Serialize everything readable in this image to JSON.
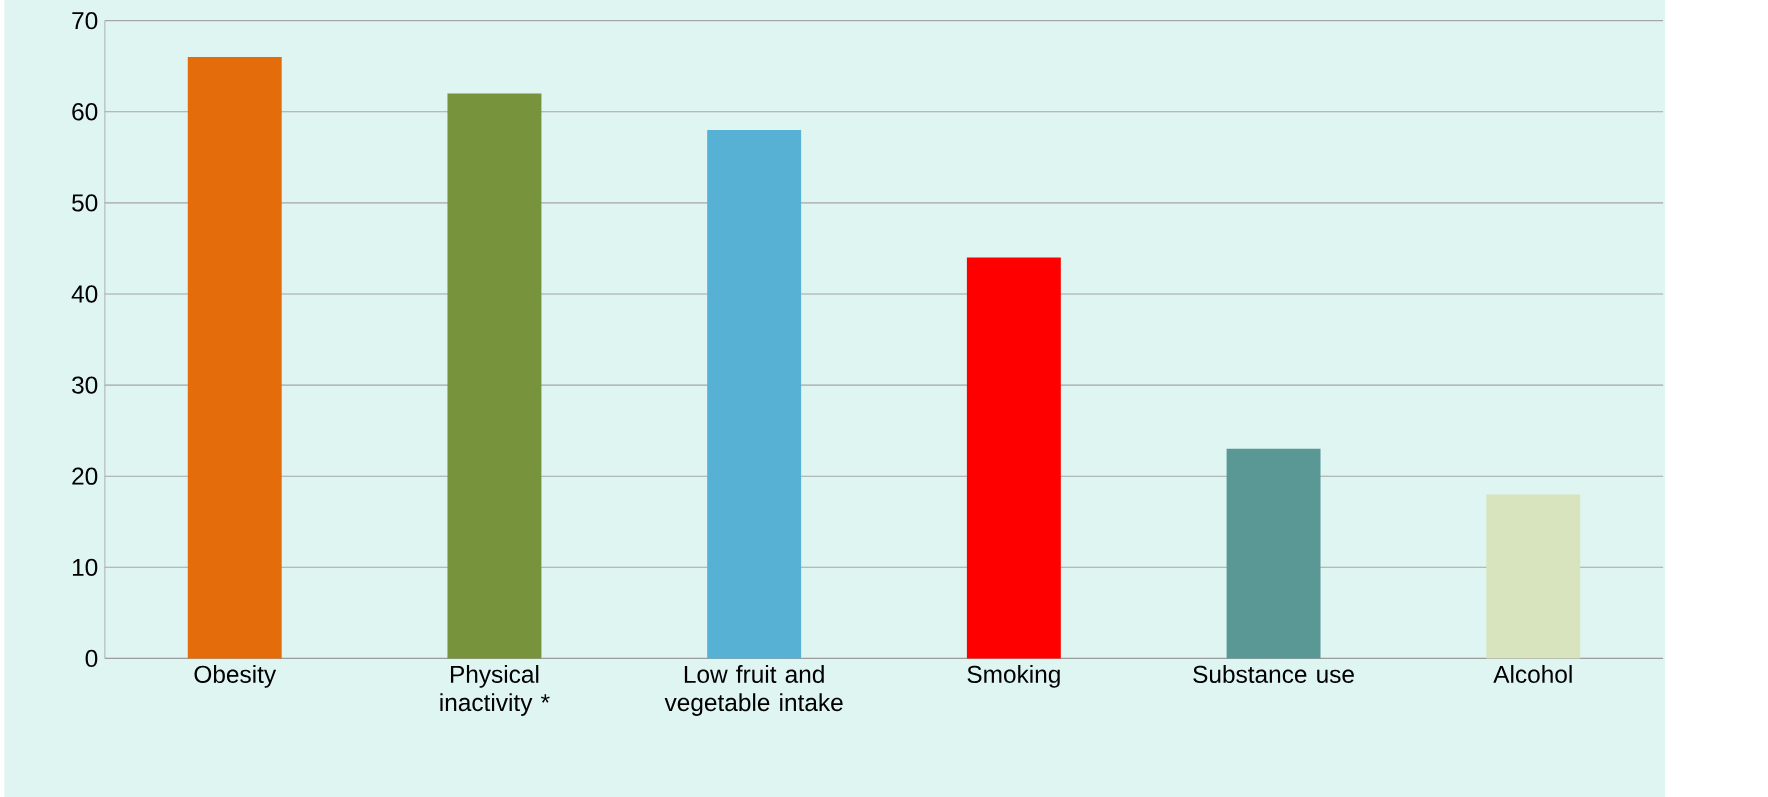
{
  "chart_data": {
    "type": "bar",
    "categories": [
      "Obesity",
      "Physical inactivity *",
      "Low fruit and vegetable intake",
      "Smoking",
      "Substance use",
      "Alcohol"
    ],
    "values": [
      66,
      62,
      58,
      44,
      23,
      18
    ],
    "colors": [
      "#e46c0a",
      "#77933c",
      "#56b1d4",
      "#ff0000",
      "#5a9896",
      "#d7e4bd"
    ],
    "ylim": [
      0,
      70
    ],
    "yticks": [
      0,
      10,
      20,
      30,
      40,
      50,
      60,
      70
    ],
    "grid": "y"
  }
}
